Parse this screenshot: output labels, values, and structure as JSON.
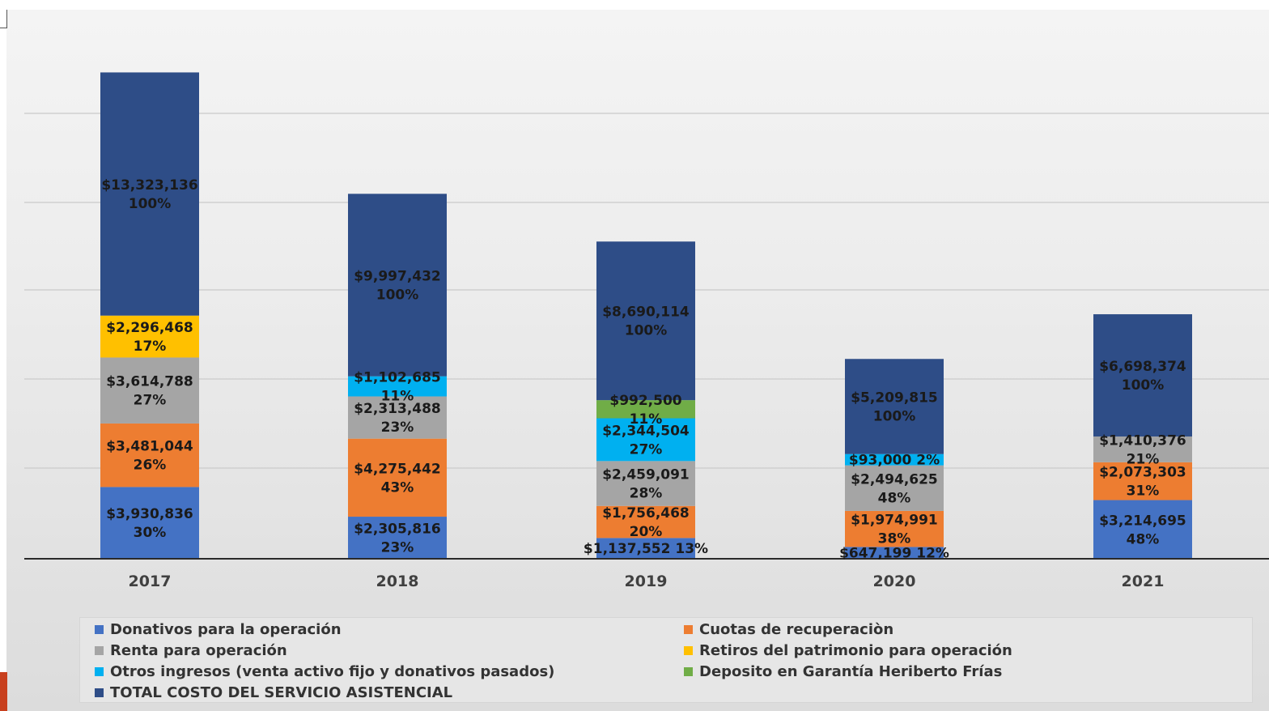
{
  "chart_data": {
    "type": "bar",
    "stacked": true,
    "categories": [
      "2017",
      "2018",
      "2019",
      "2020",
      "2021"
    ],
    "series": [
      {
        "name": "Donativos  para  la  operación",
        "color": "#4472c4",
        "values": [
          3930836,
          2305816,
          1137552,
          647199,
          3214695
        ],
        "labels": [
          "$3,930,836\n30%",
          "$2,305,816\n23%",
          "$1,137,552  13%",
          "$647,199  12%",
          "$3,214,695\n48%"
        ]
      },
      {
        "name": "Cuotas de recuperaciòn",
        "color": "#ed7d31",
        "values": [
          3481044,
          4275442,
          1756468,
          1974991,
          2073303
        ],
        "labels": [
          "$3,481,044\n26%",
          "$4,275,442\n43%",
          "$1,756,468\n20%",
          "$1,974,991\n38%",
          "$2,073,303\n31%"
        ]
      },
      {
        "name": "Renta para  operación",
        "color": "#a5a5a5",
        "values": [
          3614788,
          2313488,
          2459091,
          2494625,
          1410376
        ],
        "labels": [
          "$3,614,788\n27%",
          "$2,313,488\n23%",
          "$2,459,091\n28%",
          "$2,494,625\n48%",
          "$1,410,376\n21%"
        ]
      },
      {
        "name": "Retiros del patrimonio para operación",
        "color": "#ffc000",
        "values": [
          2296468,
          0,
          0,
          0,
          0
        ],
        "labels": [
          "$2,296,468\n17%",
          "",
          "",
          "",
          ""
        ]
      },
      {
        "name": "Otros ingresos (venta activo fijo  y donativos pasados)",
        "color": "#00b0f0",
        "values": [
          0,
          1102685,
          2344504,
          93000,
          0
        ],
        "labels": [
          "",
          "$1,102,685\n11%",
          "$2,344,504\n27%",
          "$93,000 2%",
          ""
        ]
      },
      {
        "name": "Deposito en Garantía Heriberto Frías",
        "color": "#70ad47",
        "values": [
          0,
          0,
          992500,
          0,
          0
        ],
        "labels": [
          "",
          "",
          "$992,500\n11%",
          "",
          ""
        ]
      },
      {
        "name": "TOTAL COSTO DEL SERVICIO ASISTENCIAL",
        "color": "#2e4d87",
        "values": [
          13323136,
          9997432,
          8690114,
          5209815,
          6698374
        ],
        "labels": [
          "$13,323,136\n100%",
          "$9,997,432\n100%",
          "$8,690,114\n100%",
          "$5,209,815\n100%",
          "$6,698,374\n100%"
        ]
      }
    ],
    "grid": true,
    "legend_position": "bottom"
  },
  "legend": {
    "items": [
      {
        "label": "Donativos  para  la  operación",
        "color": "#4472c4"
      },
      {
        "label": "Cuotas de recuperaciòn",
        "color": "#ed7d31"
      },
      {
        "label": "Renta para  operación",
        "color": "#a5a5a5"
      },
      {
        "label": "Retiros del patrimonio para operación",
        "color": "#ffc000"
      },
      {
        "label": "Otros ingresos (venta activo fijo  y donativos pasados)",
        "color": "#00b0f0"
      },
      {
        "label": "Deposito en Garantía Heriberto Frías",
        "color": "#70ad47"
      },
      {
        "label": "TOTAL COSTO DEL SERVICIO ASISTENCIAL",
        "color": "#2e4d87"
      }
    ]
  }
}
